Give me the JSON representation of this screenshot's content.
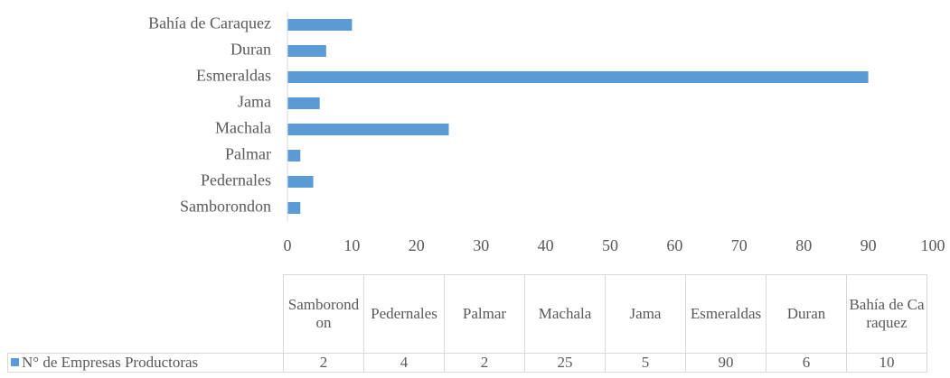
{
  "chart_data": {
    "type": "bar",
    "orientation": "horizontal",
    "categories": [
      "Samborondon",
      "Pedernales",
      "Palmar",
      "Machala",
      "Jama",
      "Esmeraldas",
      "Duran",
      "Bahía de Caraquez"
    ],
    "series": [
      {
        "name": "N° de Empresas Productoras",
        "color": "#5b9bd5",
        "values": [
          2,
          4,
          2,
          25,
          5,
          90,
          6,
          10
        ]
      }
    ],
    "xlim": [
      0,
      100
    ],
    "xticks": [
      0,
      10,
      20,
      30,
      40,
      50,
      60,
      70,
      80,
      90,
      100
    ],
    "grid": false
  }
}
